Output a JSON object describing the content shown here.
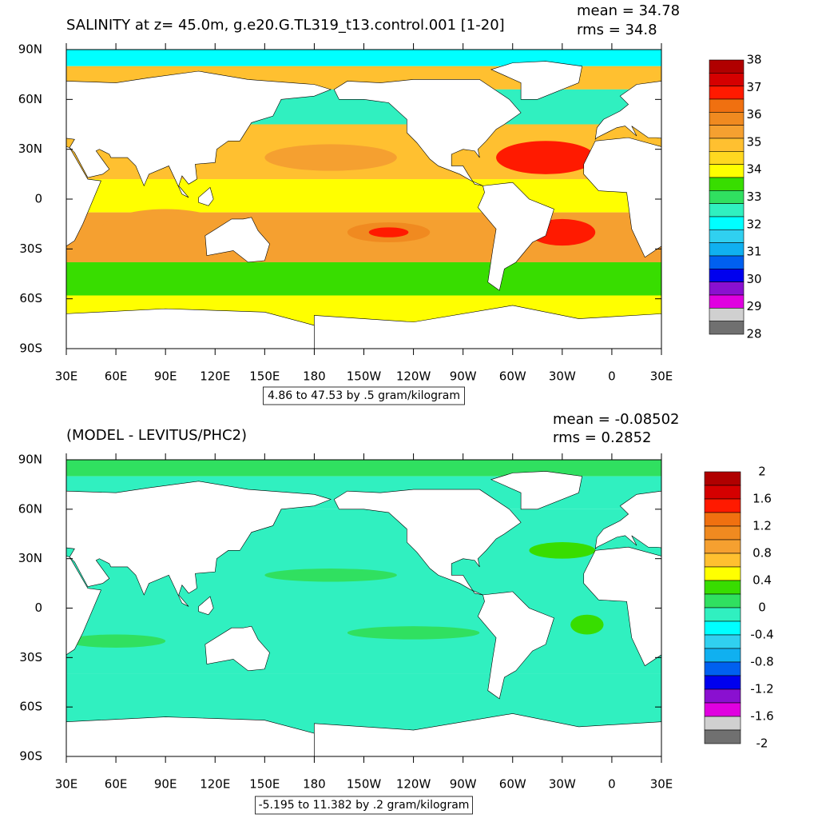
{
  "panels": [
    {
      "title": "SALINITY at z=  45.0m, g.e20.G.TL319_t13.control.001 [1-20]",
      "mean": "mean = 34.78",
      "rms": "rms = 34.8",
      "contour_info": "4.86 to 47.53 by .5 gram/kilogram",
      "colorbar": {
        "labels": [
          "38",
          "37",
          "36",
          "35",
          "34",
          "33",
          "32",
          "31",
          "30",
          "29",
          "28"
        ],
        "colors": [
          "#b00000",
          "#d50000",
          "#ff1a00",
          "#f07010",
          "#f08a20",
          "#f5a030",
          "#ffc030",
          "#ffd820",
          "#ffff00",
          "#38dd00",
          "#30e060",
          "#30f0c0",
          "#00ffff",
          "#30d0f0",
          "#10b0f0",
          "#0060f0",
          "#0000ee",
          "#8a10d0",
          "#e000e0",
          "#d0d0d0",
          "#707070"
        ]
      }
    },
    {
      "title": "(MODEL - LEVITUS/PHC2)",
      "mean": "mean = -0.08502",
      "rms": "rms = 0.2852",
      "contour_info": "-5.195 to 11.382 by .2 gram/kilogram",
      "colorbar": {
        "labels": [
          "2",
          "1.6",
          "1.2",
          "0.8",
          "0.4",
          "0",
          "-0.4",
          "-0.8",
          "-1.2",
          "-1.6",
          "-2"
        ],
        "colors": [
          "#b00000",
          "#d50000",
          "#ff1a00",
          "#f07010",
          "#f08a20",
          "#f5a030",
          "#ffc030",
          "#ffff00",
          "#38dd00",
          "#30e060",
          "#30f0c0",
          "#00ffff",
          "#30d0f0",
          "#10b0f0",
          "#0060f0",
          "#0000ee",
          "#8a10d0",
          "#e000e0",
          "#d0d0d0",
          "#707070"
        ]
      }
    }
  ],
  "lat_labels": [
    "90N",
    "60N",
    "30N",
    "0",
    "30S",
    "60S",
    "90S"
  ],
  "lon_labels": [
    "30E",
    "60E",
    "90E",
    "120E",
    "150E",
    "180",
    "150W",
    "120W",
    "90W",
    "60W",
    "30W",
    "0",
    "30E"
  ]
}
